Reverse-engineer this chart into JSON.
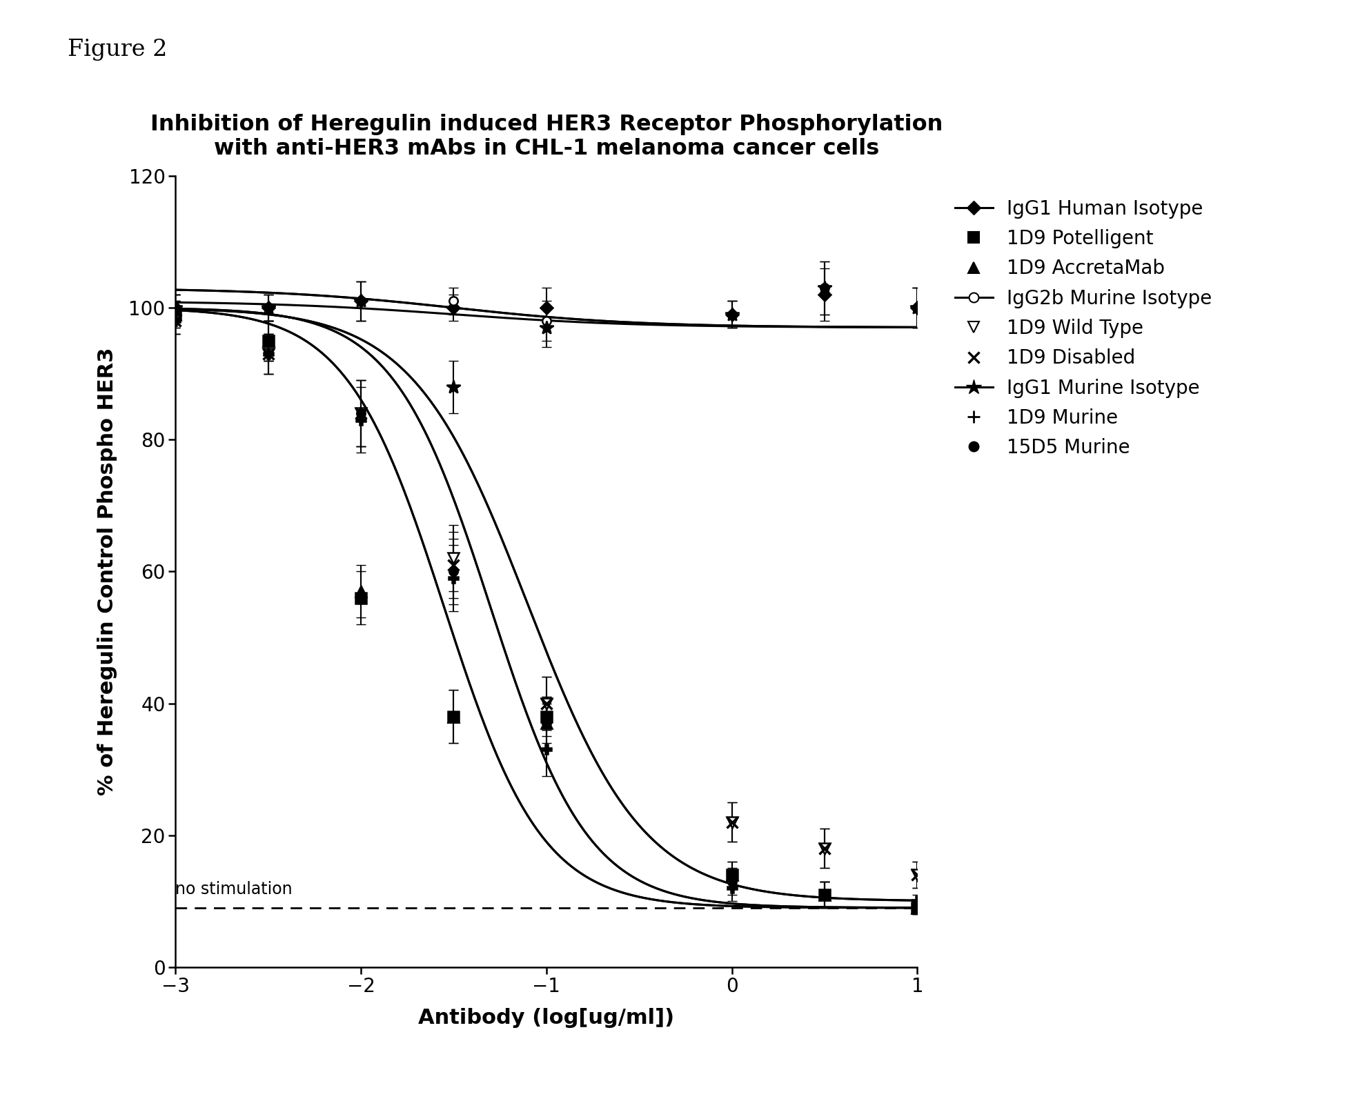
{
  "title_line1": "Inhibition of Heregulin induced HER3 Receptor Phosphorylation",
  "title_line2": "with anti-HER3 mAbs in CHL-1 melanoma cancer cells",
  "xlabel": "Antibody (log[ug/ml])",
  "ylabel": "% of Heregulin Control Phospho HER3",
  "figure_label": "Figure 2",
  "xlim": [
    -3,
    1
  ],
  "ylim": [
    0,
    120
  ],
  "xticks": [
    -3,
    -2,
    -1,
    0,
    1
  ],
  "yticks": [
    0,
    20,
    40,
    60,
    80,
    100,
    120
  ],
  "no_stimulation_y": 9,
  "background_color": "#ffffff",
  "series": [
    {
      "label": "IgG1 Human Isotype",
      "marker": "D",
      "ms": 9,
      "filled": true,
      "flat": true,
      "x": [
        -3,
        -2.5,
        -2,
        -1.5,
        -1,
        0,
        0.5,
        1
      ],
      "y": [
        100,
        100,
        101,
        100,
        100,
        99,
        102,
        100
      ],
      "yerr": [
        2,
        2,
        3,
        2,
        3,
        2,
        4,
        3
      ],
      "sig": {
        "x0": -1.5,
        "k": 2.0,
        "bottom": 97,
        "top": 101
      }
    },
    {
      "label": "1D9 Potelligent",
      "marker": "s",
      "ms": 11,
      "filled": true,
      "flat": false,
      "x": [
        -3,
        -2.5,
        -2,
        -1.5,
        -1,
        0,
        0.5,
        1
      ],
      "y": [
        99,
        95,
        56,
        38,
        38,
        14,
        11,
        9
      ],
      "yerr": [
        2,
        3,
        4,
        4,
        3,
        2,
        2,
        1
      ],
      "sig": {
        "x0": -1.55,
        "k": 3.8,
        "bottom": 9,
        "top": 100
      }
    },
    {
      "label": "1D9 AccretaMab",
      "marker": "^",
      "ms": 11,
      "filled": true,
      "flat": false,
      "x": [
        -3,
        -2.5,
        -2,
        -1.5,
        -1,
        0,
        0.5,
        1
      ],
      "y": [
        99,
        95,
        57,
        38,
        37,
        14,
        11,
        9
      ],
      "yerr": [
        2,
        3,
        4,
        4,
        3,
        2,
        2,
        1
      ],
      "sig": {
        "x0": -1.55,
        "k": 3.8,
        "bottom": 9,
        "top": 100
      }
    },
    {
      "label": "IgG2b Murine Isotype",
      "marker": "o",
      "ms": 9,
      "filled": false,
      "flat": true,
      "x": [
        -3,
        -2.5,
        -2,
        -1.5,
        -1,
        0,
        0.5,
        1
      ],
      "y": [
        100,
        100,
        101,
        101,
        98,
        99,
        103,
        100
      ],
      "yerr": [
        2,
        2,
        3,
        2,
        3,
        2,
        4,
        3
      ],
      "sig": {
        "x0": -1.5,
        "k": 2.0,
        "bottom": 97,
        "top": 103
      }
    },
    {
      "label": "1D9 Wild Type",
      "marker": "v",
      "ms": 11,
      "filled": false,
      "flat": false,
      "x": [
        -3,
        -2.5,
        -2,
        -1.5,
        -1,
        0,
        0.5,
        1
      ],
      "y": [
        98,
        93,
        84,
        62,
        40,
        22,
        18,
        14
      ],
      "yerr": [
        2,
        3,
        5,
        5,
        4,
        3,
        3,
        2
      ],
      "sig": {
        "x0": -1.1,
        "k": 3.2,
        "bottom": 10,
        "top": 100
      }
    },
    {
      "label": "1D9 Disabled",
      "marker": "x",
      "ms": 11,
      "filled": false,
      "flat": false,
      "x": [
        -3,
        -2.5,
        -2,
        -1.5,
        -1,
        0,
        0.5,
        1
      ],
      "y": [
        98,
        93,
        84,
        61,
        40,
        22,
        18,
        14
      ],
      "yerr": [
        2,
        3,
        5,
        5,
        4,
        3,
        3,
        2
      ],
      "sig": {
        "x0": -1.1,
        "k": 3.2,
        "bottom": 10,
        "top": 100
      }
    },
    {
      "label": "IgG1 Murine Isotype",
      "marker": "*",
      "ms": 15,
      "filled": true,
      "flat": true,
      "x": [
        -3,
        -2.5,
        -2,
        -1.5,
        -1,
        0,
        0.5,
        1
      ],
      "y": [
        100,
        100,
        101,
        88,
        97,
        99,
        103,
        100
      ],
      "yerr": [
        2,
        2,
        3,
        4,
        3,
        2,
        4,
        3
      ],
      "sig": {
        "x0": -1.5,
        "k": 2.0,
        "bottom": 97,
        "top": 103
      }
    },
    {
      "label": "1D9 Murine",
      "marker": "P",
      "ms": 10,
      "filled": true,
      "flat": false,
      "x": [
        -3,
        -2.5,
        -2,
        -1.5,
        -1,
        0,
        0.5,
        1
      ],
      "y": [
        98,
        93,
        83,
        59,
        33,
        12,
        11,
        10
      ],
      "yerr": [
        2,
        3,
        5,
        5,
        4,
        2,
        2,
        1
      ],
      "sig": {
        "x0": -1.3,
        "k": 3.8,
        "bottom": 9,
        "top": 100
      }
    },
    {
      "label": "15D5 Murine",
      "marker": "o",
      "ms": 9,
      "filled": true,
      "flat": false,
      "x": [
        -3,
        -2.5,
        -2,
        -1.5,
        -1,
        0,
        0.5,
        1
      ],
      "y": [
        100,
        95,
        84,
        60,
        37,
        13,
        11,
        9
      ],
      "yerr": [
        2,
        3,
        5,
        5,
        4,
        2,
        2,
        1
      ],
      "sig": {
        "x0": -1.3,
        "k": 3.8,
        "bottom": 9,
        "top": 100
      }
    }
  ]
}
